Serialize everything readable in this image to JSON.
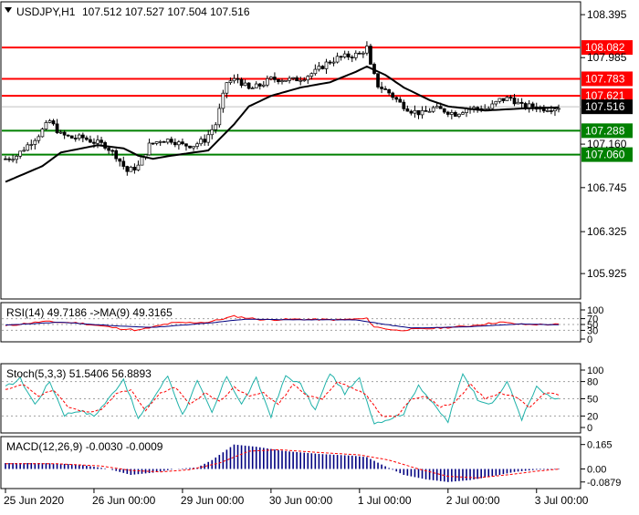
{
  "chart_data": {
    "type": "candlestick",
    "symbol_label": "USDJPY,H1",
    "ohlc_label": "107.512 107.527 107.504 107.516",
    "price_axis": {
      "ylim": [
        105.7,
        108.5
      ],
      "ticks": [
        "108.395",
        "107.985",
        "107.160",
        "106.745",
        "106.325",
        "105.925"
      ]
    },
    "levels": [
      {
        "value": 108.082,
        "label": "108.082",
        "color": "#ff0000"
      },
      {
        "value": 107.783,
        "label": "107.783",
        "color": "#ff0000"
      },
      {
        "value": 107.621,
        "label": "107.621",
        "color": "#ff0000"
      },
      {
        "value": 107.288,
        "label": "107.288",
        "color": "#008000"
      },
      {
        "value": 107.06,
        "label": "107.060",
        "color": "#008000"
      }
    ],
    "current_price": {
      "value": 107.516,
      "label": "107.516"
    },
    "price_anchors": [
      [
        0,
        107.02
      ],
      [
        3,
        107.05
      ],
      [
        6,
        107.15
      ],
      [
        9,
        107.25
      ],
      [
        12,
        107.38
      ],
      [
        15,
        107.25
      ],
      [
        18,
        107.22
      ],
      [
        21,
        107.22
      ],
      [
        24,
        107.18
      ],
      [
        27,
        107.15
      ],
      [
        30,
        107.05
      ],
      [
        33,
        106.9
      ],
      [
        36,
        106.95
      ],
      [
        39,
        107.15
      ],
      [
        42,
        107.2
      ],
      [
        45,
        107.2
      ],
      [
        48,
        107.15
      ],
      [
        51,
        107.15
      ],
      [
        54,
        107.2
      ],
      [
        57,
        107.35
      ],
      [
        60,
        107.75
      ],
      [
        63,
        107.78
      ],
      [
        66,
        107.68
      ],
      [
        69,
        107.72
      ],
      [
        72,
        107.78
      ],
      [
        75,
        107.78
      ],
      [
        78,
        107.77
      ],
      [
        81,
        107.8
      ],
      [
        84,
        107.85
      ],
      [
        87,
        107.93
      ],
      [
        90,
        107.98
      ],
      [
        93,
        108.0
      ],
      [
        96,
        108.02
      ],
      [
        98,
        108.08
      ],
      [
        99,
        107.9
      ],
      [
        101,
        107.72
      ],
      [
        104,
        107.65
      ],
      [
        107,
        107.55
      ],
      [
        110,
        107.48
      ],
      [
        113,
        107.45
      ],
      [
        116,
        107.5
      ],
      [
        119,
        107.48
      ],
      [
        122,
        107.45
      ],
      [
        125,
        107.5
      ],
      [
        128,
        107.5
      ],
      [
        131,
        107.5
      ],
      [
        134,
        107.58
      ],
      [
        137,
        107.6
      ],
      [
        140,
        107.52
      ],
      [
        143,
        107.52
      ],
      [
        146,
        107.5
      ],
      [
        149,
        107.51
      ],
      [
        150,
        107.516
      ]
    ],
    "ma_anchors": [
      [
        0,
        106.8
      ],
      [
        10,
        106.95
      ],
      [
        15,
        107.08
      ],
      [
        25,
        107.15
      ],
      [
        32,
        107.12
      ],
      [
        36,
        107.05
      ],
      [
        40,
        107.02
      ],
      [
        45,
        107.05
      ],
      [
        55,
        107.1
      ],
      [
        62,
        107.35
      ],
      [
        66,
        107.52
      ],
      [
        72,
        107.62
      ],
      [
        80,
        107.7
      ],
      [
        88,
        107.75
      ],
      [
        95,
        107.85
      ],
      [
        98,
        107.9
      ],
      [
        103,
        107.82
      ],
      [
        108,
        107.7
      ],
      [
        115,
        107.58
      ],
      [
        120,
        107.52
      ],
      [
        130,
        107.48
      ],
      [
        140,
        107.5
      ],
      [
        150,
        107.51
      ]
    ],
    "x_ticks": [
      {
        "index": 0,
        "label": "25 Jun 2020"
      },
      {
        "index": 24,
        "label": "26 Jun 00:00"
      },
      {
        "index": 48,
        "label": "29 Jun 00:00"
      },
      {
        "index": 72,
        "label": "30 Jun 00:00"
      },
      {
        "index": 96,
        "label": "1 Jul 00:00"
      },
      {
        "index": 120,
        "label": "2 Jul 00:00"
      },
      {
        "index": 144,
        "label": "3 Jul 00:00"
      }
    ],
    "rsi": {
      "label": "RSI(14) 49.7186  ->MA(9) 49.3165",
      "ylim": [
        0,
        100
      ],
      "ticks": [
        "100",
        "70",
        "50",
        "30",
        "0"
      ],
      "anchors": [
        [
          0,
          45
        ],
        [
          10,
          60
        ],
        [
          20,
          55
        ],
        [
          30,
          38
        ],
        [
          36,
          30
        ],
        [
          45,
          55
        ],
        [
          55,
          58
        ],
        [
          62,
          78
        ],
        [
          70,
          66
        ],
        [
          80,
          68
        ],
        [
          90,
          66
        ],
        [
          98,
          70
        ],
        [
          100,
          42
        ],
        [
          106,
          30
        ],
        [
          115,
          36
        ],
        [
          125,
          44
        ],
        [
          134,
          58
        ],
        [
          140,
          50
        ],
        [
          150,
          50
        ]
      ],
      "ma_anchors": [
        [
          0,
          48
        ],
        [
          15,
          58
        ],
        [
          30,
          45
        ],
        [
          40,
          40
        ],
        [
          55,
          55
        ],
        [
          65,
          68
        ],
        [
          80,
          66
        ],
        [
          95,
          66
        ],
        [
          102,
          52
        ],
        [
          110,
          38
        ],
        [
          125,
          42
        ],
        [
          140,
          52
        ],
        [
          150,
          49
        ]
      ]
    },
    "stoch": {
      "label": "Stoch(5,3,3) 51.5406 56.8893",
      "ylim": [
        0,
        100
      ],
      "ticks": [
        "100",
        "80",
        "50",
        "20",
        "0"
      ],
      "anchors": [
        [
          0,
          70
        ],
        [
          4,
          85
        ],
        [
          8,
          40
        ],
        [
          12,
          80
        ],
        [
          16,
          22
        ],
        [
          20,
          30
        ],
        [
          24,
          20
        ],
        [
          28,
          50
        ],
        [
          32,
          85
        ],
        [
          36,
          15
        ],
        [
          40,
          50
        ],
        [
          44,
          90
        ],
        [
          48,
          22
        ],
        [
          52,
          80
        ],
        [
          56,
          25
        ],
        [
          60,
          90
        ],
        [
          64,
          40
        ],
        [
          68,
          85
        ],
        [
          72,
          20
        ],
        [
          76,
          90
        ],
        [
          80,
          75
        ],
        [
          84,
          30
        ],
        [
          88,
          95
        ],
        [
          92,
          60
        ],
        [
          96,
          85
        ],
        [
          100,
          8
        ],
        [
          104,
          15
        ],
        [
          108,
          25
        ],
        [
          112,
          75
        ],
        [
          116,
          40
        ],
        [
          120,
          10
        ],
        [
          124,
          95
        ],
        [
          128,
          50
        ],
        [
          132,
          40
        ],
        [
          136,
          80
        ],
        [
          140,
          15
        ],
        [
          144,
          70
        ],
        [
          148,
          50
        ],
        [
          150,
          51
        ]
      ],
      "sig_anchors": [
        [
          0,
          65
        ],
        [
          5,
          75
        ],
        [
          9,
          55
        ],
        [
          13,
          65
        ],
        [
          17,
          35
        ],
        [
          22,
          28
        ],
        [
          26,
          30
        ],
        [
          30,
          60
        ],
        [
          34,
          65
        ],
        [
          38,
          30
        ],
        [
          42,
          60
        ],
        [
          46,
          70
        ],
        [
          50,
          40
        ],
        [
          54,
          60
        ],
        [
          58,
          45
        ],
        [
          62,
          70
        ],
        [
          66,
          55
        ],
        [
          70,
          60
        ],
        [
          74,
          40
        ],
        [
          78,
          75
        ],
        [
          82,
          55
        ],
        [
          86,
          50
        ],
        [
          90,
          80
        ],
        [
          94,
          70
        ],
        [
          98,
          55
        ],
        [
          102,
          20
        ],
        [
          106,
          18
        ],
        [
          110,
          50
        ],
        [
          114,
          55
        ],
        [
          118,
          35
        ],
        [
          122,
          45
        ],
        [
          126,
          75
        ],
        [
          130,
          50
        ],
        [
          134,
          60
        ],
        [
          138,
          55
        ],
        [
          142,
          35
        ],
        [
          146,
          60
        ],
        [
          150,
          57
        ]
      ]
    },
    "macd": {
      "label": "MACD(12,26,9) -0.0030 -0.0009",
      "ylim": [
        -0.12,
        0.2
      ],
      "ticks": [
        "0.165",
        "0.00",
        "-0.0879"
      ],
      "anchors": [
        [
          0,
          0.04
        ],
        [
          10,
          0.04
        ],
        [
          20,
          0.03
        ],
        [
          28,
          0.0
        ],
        [
          34,
          -0.04
        ],
        [
          40,
          -0.025
        ],
        [
          46,
          0.0
        ],
        [
          52,
          0.01
        ],
        [
          56,
          0.06
        ],
        [
          62,
          0.165
        ],
        [
          68,
          0.15
        ],
        [
          76,
          0.12
        ],
        [
          86,
          0.1
        ],
        [
          94,
          0.09
        ],
        [
          98,
          0.08
        ],
        [
          102,
          0.03
        ],
        [
          108,
          -0.04
        ],
        [
          114,
          -0.07
        ],
        [
          120,
          -0.088
        ],
        [
          126,
          -0.075
        ],
        [
          132,
          -0.05
        ],
        [
          138,
          -0.02
        ],
        [
          144,
          -0.005
        ],
        [
          150,
          -0.003
        ]
      ],
      "sig_anchors": [
        [
          0,
          0.035
        ],
        [
          14,
          0.035
        ],
        [
          26,
          0.02
        ],
        [
          34,
          -0.01
        ],
        [
          42,
          -0.02
        ],
        [
          50,
          -0.005
        ],
        [
          58,
          0.04
        ],
        [
          66,
          0.12
        ],
        [
          74,
          0.13
        ],
        [
          86,
          0.11
        ],
        [
          96,
          0.095
        ],
        [
          104,
          0.06
        ],
        [
          112,
          0.0
        ],
        [
          120,
          -0.05
        ],
        [
          128,
          -0.06
        ],
        [
          136,
          -0.04
        ],
        [
          144,
          -0.015
        ],
        [
          150,
          -0.001
        ]
      ]
    }
  }
}
